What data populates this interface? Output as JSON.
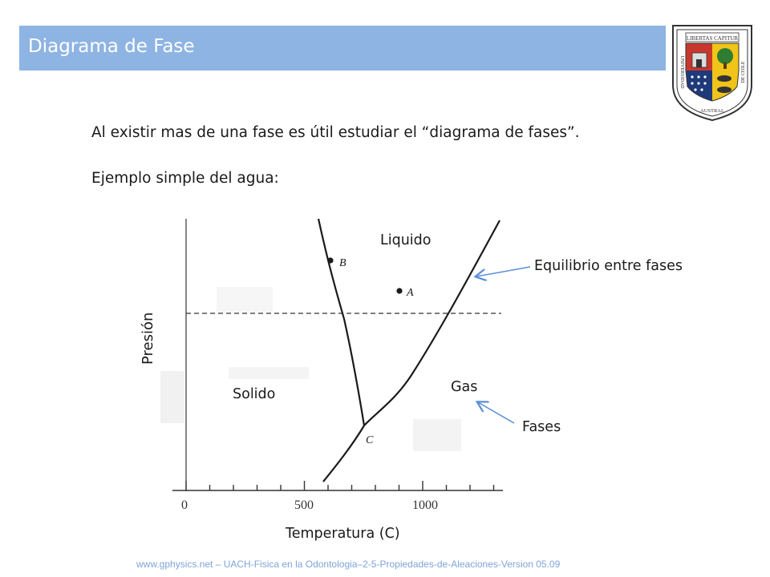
{
  "slide": {
    "title": "Diagrama de Fase",
    "crest_text": {
      "top": "LIBERTAS CAPITUR",
      "left": "UNIVERSIDAD",
      "bottom": "AUSTRAL",
      "right": "DE CHILE"
    },
    "intro_line": "Al existir mas de una fase es útil estudiar el “diagrama de fases”.",
    "example_line": "Ejemplo simple del agua:",
    "footer": "www.gphysics.net – UACH-Fisica en la Odontologia–2-5-Propiedades-de-Aleaciones-Version 05.09"
  },
  "diagram": {
    "region_labels": {
      "liquid": "Liquido",
      "solid": "Solido",
      "gas": "Gas"
    },
    "point_labels": [
      "B",
      "A",
      "C"
    ],
    "x_ticks": [
      "0",
      "500",
      "1000"
    ],
    "xlabel": "Temperatura (C)",
    "ylabel": "Presión",
    "annotations": {
      "equilibrium": "Equilibrio entre fases",
      "phases": "Fases"
    },
    "arrow_color": "#5b8fd6"
  }
}
